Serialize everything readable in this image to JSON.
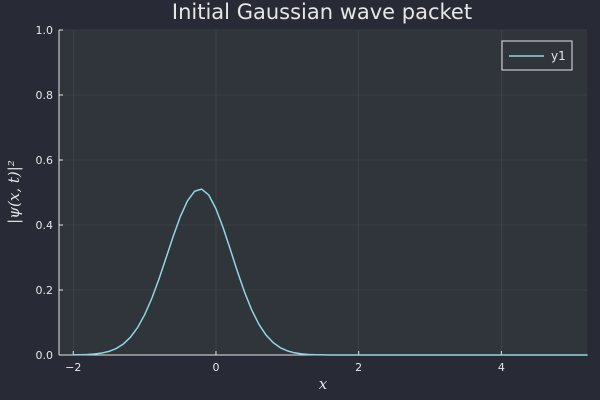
{
  "chart_data": {
    "type": "line",
    "title": "Initial Gaussian wave packet",
    "xlabel": "x",
    "ylabel": "|ψ(x, t)|²",
    "xlim": [
      -2.2,
      5.2
    ],
    "ylim": [
      0,
      1.0
    ],
    "xticks": [
      "-2",
      "0",
      "2",
      "4"
    ],
    "xtick_values": [
      -2,
      0,
      2,
      4
    ],
    "yticks": [
      "0.0",
      "0.2",
      "0.4",
      "0.6",
      "0.8",
      "1.0"
    ],
    "ytick_values": [
      0,
      0.2,
      0.4,
      0.6,
      0.8,
      1.0
    ],
    "grid": true,
    "legend": {
      "position": "top-right",
      "entries": [
        "y1"
      ]
    },
    "series": [
      {
        "name": "y1",
        "color": "#8fd7e0",
        "x": [
          -2.0,
          -1.9,
          -1.8,
          -1.7,
          -1.6,
          -1.5,
          -1.4,
          -1.3,
          -1.2,
          -1.1,
          -1.0,
          -0.9,
          -0.8,
          -0.7,
          -0.6,
          -0.5,
          -0.4,
          -0.3,
          -0.2,
          -0.1,
          0.0,
          0.1,
          0.2,
          0.3,
          0.4,
          0.5,
          0.6,
          0.7,
          0.8,
          0.9,
          1.0,
          1.1,
          1.2,
          1.3,
          1.4,
          1.5,
          1.6,
          1.7,
          1.8,
          1.9,
          2.0,
          2.2,
          2.5,
          3.0,
          3.5,
          4.0,
          4.5,
          5.0,
          5.2
        ],
        "values": [
          0.0003,
          0.0007,
          0.0015,
          0.0031,
          0.006,
          0.0111,
          0.0198,
          0.0336,
          0.0543,
          0.0839,
          0.1237,
          0.1738,
          0.2331,
          0.2984,
          0.3647,
          0.4256,
          0.4741,
          0.5038,
          0.5103,
          0.492,
          0.4496,
          0.3919,
          0.3255,
          0.2574,
          0.1938,
          0.1391,
          0.0951,
          0.0619,
          0.0384,
          0.0226,
          0.0127,
          0.0068,
          0.0035,
          0.0017,
          0.0008,
          0.0003,
          0.0001,
          0.0,
          0.0,
          0.0,
          0.0,
          0.0,
          0.0,
          0.0,
          0.0,
          0.0,
          0.0,
          0.0,
          0.0
        ]
      }
    ]
  },
  "colors": {
    "background": "#282a35",
    "plot_background": "#30343b",
    "grid": "#454a52",
    "axis": "#e6e6e6",
    "text": "#e6e6e6",
    "series": "#8fd7e0"
  }
}
